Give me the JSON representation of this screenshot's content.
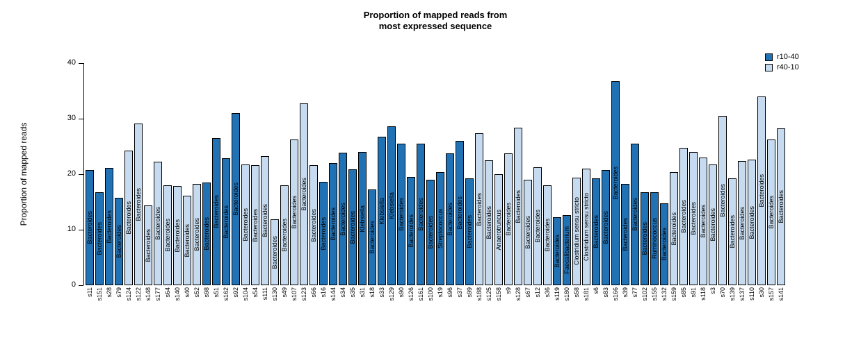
{
  "chart_data": {
    "type": "bar",
    "title": "Proportion of mapped reads from most expressed sequence",
    "title_lines": [
      "Proportion of mapped reads from",
      "most expressed sequence"
    ],
    "xlabel": "",
    "ylabel": "Proportion of mapped reads",
    "ylim": [
      0,
      40
    ],
    "yticks": [
      0,
      10,
      20,
      30,
      40
    ],
    "grid": false,
    "legend_position": "top-right",
    "legend": [
      {
        "name": "r10-40"
      },
      {
        "name": "r40-10"
      }
    ],
    "colors": {
      "r10-40": "#2171b5",
      "r40-10": "#c6dbef",
      "border": "#000000"
    },
    "bars": [
      {
        "sample": "s11",
        "group": "r10-40",
        "value": 20.7,
        "taxon": "Bacteroides"
      },
      {
        "sample": "s151",
        "group": "r10-40",
        "value": 16.8,
        "taxon": "Bacteroides"
      },
      {
        "sample": "s28",
        "group": "r10-40",
        "value": 21.1,
        "taxon": "Bacteroides"
      },
      {
        "sample": "s79",
        "group": "r10-40",
        "value": 15.8,
        "taxon": "Bacteroides"
      },
      {
        "sample": "s124",
        "group": "r40-10",
        "value": 24.2,
        "taxon": "Bacteroides"
      },
      {
        "sample": "s122",
        "group": "r40-10",
        "value": 29.1,
        "taxon": "Bacteroides"
      },
      {
        "sample": "s148",
        "group": "r40-10",
        "value": 14.4,
        "taxon": "Bacteroides"
      },
      {
        "sample": "s177",
        "group": "r40-10",
        "value": 22.2,
        "taxon": "Bacteroides"
      },
      {
        "sample": "s64",
        "group": "r40-10",
        "value": 18.0,
        "taxon": "Bacteroides"
      },
      {
        "sample": "s140",
        "group": "r40-10",
        "value": 17.9,
        "taxon": "Bacteroides"
      },
      {
        "sample": "s40",
        "group": "r40-10",
        "value": 16.1,
        "taxon": "Bacteroides"
      },
      {
        "sample": "s52",
        "group": "r40-10",
        "value": 18.3,
        "taxon": "Bacteroides"
      },
      {
        "sample": "s98",
        "group": "r10-40",
        "value": 18.5,
        "taxon": "Bacteroides"
      },
      {
        "sample": "s51",
        "group": "r10-40",
        "value": 26.5,
        "taxon": "Bacteroides"
      },
      {
        "sample": "s162",
        "group": "r10-40",
        "value": 22.9,
        "taxon": "Bacteroides"
      },
      {
        "sample": "s92",
        "group": "r10-40",
        "value": 31.0,
        "taxon": "Bacteroides"
      },
      {
        "sample": "s104",
        "group": "r40-10",
        "value": 21.8,
        "taxon": "Bacteroides"
      },
      {
        "sample": "s54",
        "group": "r40-10",
        "value": 21.6,
        "taxon": "Bacteroides"
      },
      {
        "sample": "s111",
        "group": "r40-10",
        "value": 23.2,
        "taxon": "Bacteroides"
      },
      {
        "sample": "s130",
        "group": "r40-10",
        "value": 11.9,
        "taxon": "Bacteroides"
      },
      {
        "sample": "s49",
        "group": "r40-10",
        "value": 18.0,
        "taxon": "Bacteroides"
      },
      {
        "sample": "s107",
        "group": "r40-10",
        "value": 26.2,
        "taxon": "Bacteroides"
      },
      {
        "sample": "s123",
        "group": "r40-10",
        "value": 32.8,
        "taxon": "Bacteroides"
      },
      {
        "sample": "s66",
        "group": "r40-10",
        "value": 21.6,
        "taxon": "Bacteroides"
      },
      {
        "sample": "s16",
        "group": "r10-40",
        "value": 18.6,
        "taxon": "Bacteroides"
      },
      {
        "sample": "s144",
        "group": "r10-40",
        "value": 22.0,
        "taxon": "Bacteroides"
      },
      {
        "sample": "s34",
        "group": "r10-40",
        "value": 23.9,
        "taxon": "Bacteroides"
      },
      {
        "sample": "s35",
        "group": "r10-40",
        "value": 20.9,
        "taxon": "Bacteroides"
      },
      {
        "sample": "s31",
        "group": "r10-40",
        "value": 24.0,
        "taxon": "Klebsiella"
      },
      {
        "sample": "s18",
        "group": "r10-40",
        "value": 17.3,
        "taxon": "Bacteroides"
      },
      {
        "sample": "s33",
        "group": "r10-40",
        "value": 26.7,
        "taxon": "Klebsiella"
      },
      {
        "sample": "s129",
        "group": "r10-40",
        "value": 28.6,
        "taxon": "Klebsiella"
      },
      {
        "sample": "s90",
        "group": "r10-40",
        "value": 25.5,
        "taxon": "Bacteroides"
      },
      {
        "sample": "s126",
        "group": "r10-40",
        "value": 19.5,
        "taxon": "Bacteroides"
      },
      {
        "sample": "s161",
        "group": "r10-40",
        "value": 25.5,
        "taxon": "Bacteroides"
      },
      {
        "sample": "s100",
        "group": "r10-40",
        "value": 19.0,
        "taxon": "Bacteroides"
      },
      {
        "sample": "s19",
        "group": "r10-40",
        "value": 20.4,
        "taxon": "Streptococcus"
      },
      {
        "sample": "s96",
        "group": "r10-40",
        "value": 23.8,
        "taxon": "Bacteroides"
      },
      {
        "sample": "s37",
        "group": "r10-40",
        "value": 26.0,
        "taxon": "Bacteroides"
      },
      {
        "sample": "s99",
        "group": "r10-40",
        "value": 19.3,
        "taxon": "Bacteroides"
      },
      {
        "sample": "s188",
        "group": "r40-10",
        "value": 27.4,
        "taxon": "Bacteroides"
      },
      {
        "sample": "s125",
        "group": "r40-10",
        "value": 22.5,
        "taxon": "Bacteroides"
      },
      {
        "sample": "s158",
        "group": "r40-10",
        "value": 20.0,
        "taxon": "Anaerotruncus"
      },
      {
        "sample": "s9",
        "group": "r40-10",
        "value": 23.8,
        "taxon": "Bacteroides"
      },
      {
        "sample": "s128",
        "group": "r40-10",
        "value": 28.4,
        "taxon": "Bacteroides"
      },
      {
        "sample": "s67",
        "group": "r40-10",
        "value": 19.0,
        "taxon": "Bacteroides"
      },
      {
        "sample": "s12",
        "group": "r40-10",
        "value": 21.2,
        "taxon": "Bacteroides"
      },
      {
        "sample": "s36",
        "group": "r40-10",
        "value": 18.0,
        "taxon": "Bacteroides"
      },
      {
        "sample": "s119",
        "group": "r10-40",
        "value": 12.3,
        "taxon": "Bacteroides"
      },
      {
        "sample": "s180",
        "group": "r10-40",
        "value": 12.6,
        "taxon": "Faecalibacterium"
      },
      {
        "sample": "s58",
        "group": "r40-10",
        "value": 19.4,
        "taxon": "Clostridium sensu stricto"
      },
      {
        "sample": "s181",
        "group": "r40-10",
        "value": 21.0,
        "taxon": "Clostridium sensu stricto"
      },
      {
        "sample": "s6",
        "group": "r10-40",
        "value": 19.3,
        "taxon": "Bacteroides"
      },
      {
        "sample": "s83",
        "group": "r10-40",
        "value": 20.7,
        "taxon": "Bacteroides"
      },
      {
        "sample": "s166",
        "group": "r10-40",
        "value": 36.8,
        "taxon": "Bacteroides"
      },
      {
        "sample": "s39",
        "group": "r10-40",
        "value": 18.2,
        "taxon": "Bacteroides"
      },
      {
        "sample": "s77",
        "group": "r10-40",
        "value": 25.5,
        "taxon": "Bacteroides"
      },
      {
        "sample": "s102",
        "group": "r10-40",
        "value": 16.8,
        "taxon": "Bacteroides"
      },
      {
        "sample": "s155",
        "group": "r10-40",
        "value": 16.8,
        "taxon": "Ruminococcus"
      },
      {
        "sample": "s132",
        "group": "r10-40",
        "value": 14.8,
        "taxon": "Bacteroides"
      },
      {
        "sample": "s159",
        "group": "r40-10",
        "value": 20.4,
        "taxon": "Bacteroides"
      },
      {
        "sample": "s85",
        "group": "r40-10",
        "value": 24.8,
        "taxon": "Bacteroides"
      },
      {
        "sample": "s91",
        "group": "r40-10",
        "value": 24.0,
        "taxon": "Bacteroides"
      },
      {
        "sample": "s118",
        "group": "r40-10",
        "value": 23.0,
        "taxon": "Bacteroides"
      },
      {
        "sample": "s3",
        "group": "r40-10",
        "value": 21.8,
        "taxon": "Bacteroides"
      },
      {
        "sample": "s70",
        "group": "r40-10",
        "value": 30.5,
        "taxon": "Bacteroides"
      },
      {
        "sample": "s139",
        "group": "r40-10",
        "value": 19.2,
        "taxon": "Bacteroides"
      },
      {
        "sample": "s137",
        "group": "r40-10",
        "value": 22.4,
        "taxon": "Bacteroides"
      },
      {
        "sample": "s110",
        "group": "r40-10",
        "value": 22.6,
        "taxon": "Bacteroides"
      },
      {
        "sample": "s30",
        "group": "r40-10",
        "value": 34.0,
        "taxon": "Bacteroides"
      },
      {
        "sample": "s157",
        "group": "r40-10",
        "value": 26.3,
        "taxon": "Bacteroides"
      },
      {
        "sample": "s141",
        "group": "r40-10",
        "value": 28.3,
        "taxon": "Bacteroides"
      }
    ]
  }
}
